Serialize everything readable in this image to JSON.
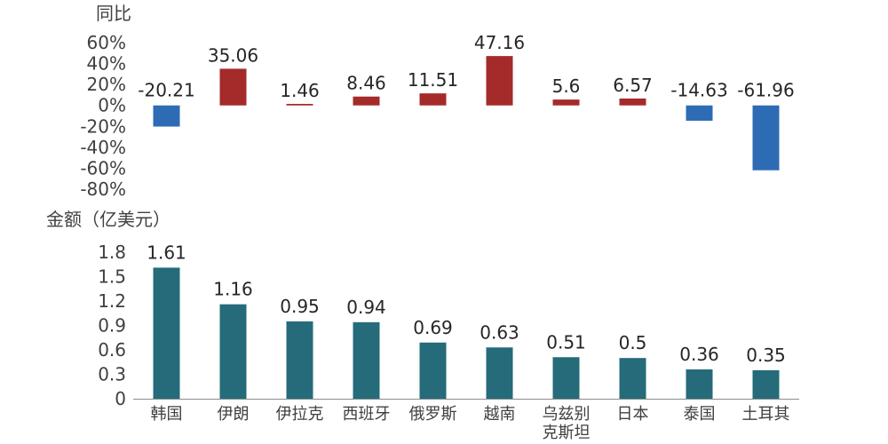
{
  "chart_data": [
    {
      "type": "bar",
      "ylabel": "同比",
      "categories": [
        "韩国",
        "伊朗",
        "伊拉克",
        "西班牙",
        "俄罗斯",
        "越南",
        "乌兹别克斯坦",
        "日本",
        "泰国",
        "土耳其"
      ],
      "values": [
        -20.21,
        35.06,
        1.46,
        8.46,
        11.51,
        47.16,
        5.6,
        6.57,
        -14.63,
        -61.96
      ],
      "data_labels": [
        "-20.21",
        "35.06",
        "1.46",
        "8.46",
        "11.51",
        "47.16",
        "5.6",
        "6.57",
        "-14.63",
        "-61.96"
      ],
      "ylim": [
        -80,
        60
      ],
      "ytick_labels": [
        "60%",
        "40%",
        "20%",
        "0%",
        "-20%",
        "-40%",
        "-60%",
        "-80%"
      ],
      "grid": false,
      "colors": {
        "positive": "#A52A2A",
        "negative": "#2E6BB5"
      }
    },
    {
      "type": "bar",
      "ylabel": "金额（亿美元）",
      "categories": [
        "韩国",
        "伊朗",
        "伊拉克",
        "西班牙",
        "俄罗斯",
        "越南",
        "乌兹别克斯坦",
        "日本",
        "泰国",
        "土耳其"
      ],
      "category_labels": [
        [
          "韩国"
        ],
        [
          "伊朗"
        ],
        [
          "伊拉克"
        ],
        [
          "西班牙"
        ],
        [
          "俄罗斯"
        ],
        [
          "越南"
        ],
        [
          "乌兹别",
          "克斯坦"
        ],
        [
          "日本"
        ],
        [
          "泰国"
        ],
        [
          "土耳其"
        ]
      ],
      "values": [
        1.61,
        1.16,
        0.95,
        0.94,
        0.69,
        0.63,
        0.51,
        0.5,
        0.36,
        0.35
      ],
      "data_labels": [
        "1.61",
        "1.16",
        "0.95",
        "0.94",
        "0.69",
        "0.63",
        "0.51",
        "0.5",
        "0.36",
        "0.35"
      ],
      "ylim": [
        0,
        1.8
      ],
      "ytick_labels": [
        "1.8",
        "1.5",
        "1.2",
        "0.9",
        "0.6",
        "0.3",
        "0"
      ],
      "grid": false,
      "colors": {
        "bar": "#256B7A",
        "axis": "#8C8C8C"
      }
    }
  ]
}
